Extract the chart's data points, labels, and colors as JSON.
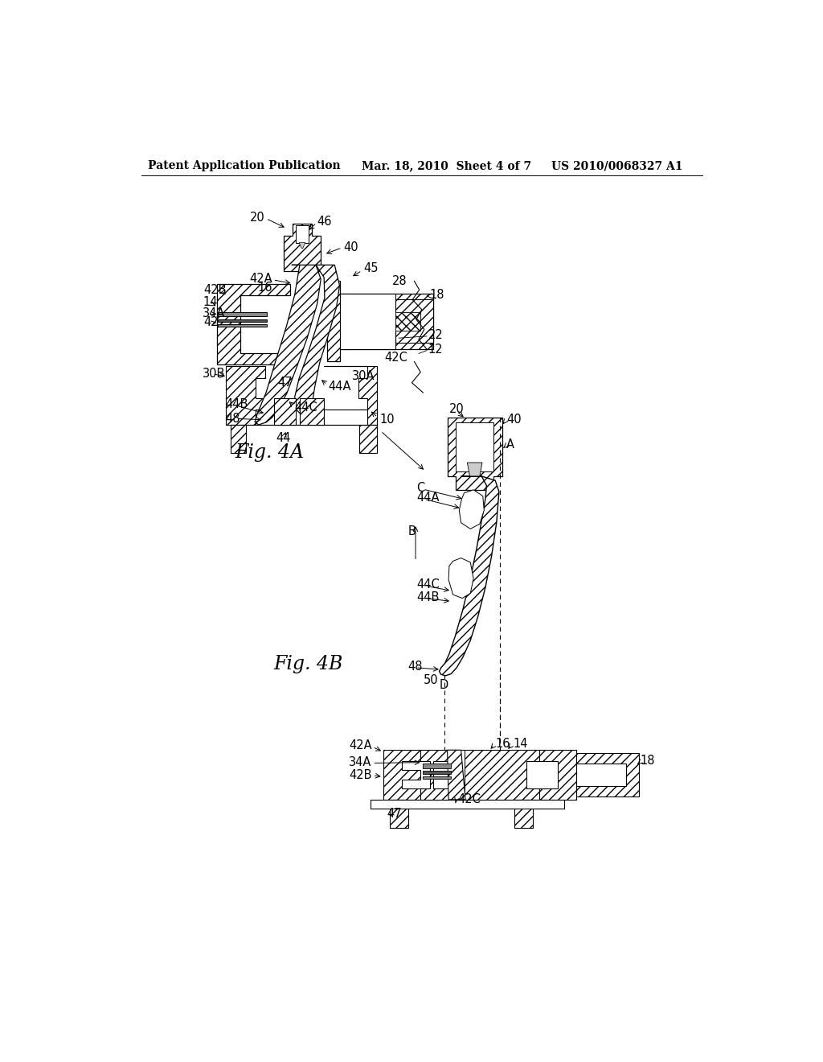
{
  "background_color": "#ffffff",
  "header_left": "Patent Application Publication",
  "header_center": "Mar. 18, 2010  Sheet 4 of 7",
  "header_right": "US 2010/0068327 A1",
  "fig4a_label": "Fig. 4A",
  "fig4b_label": "Fig. 4B",
  "header_fontsize": 10,
  "label_fontsize": 17,
  "ref_fontsize": 10.5
}
